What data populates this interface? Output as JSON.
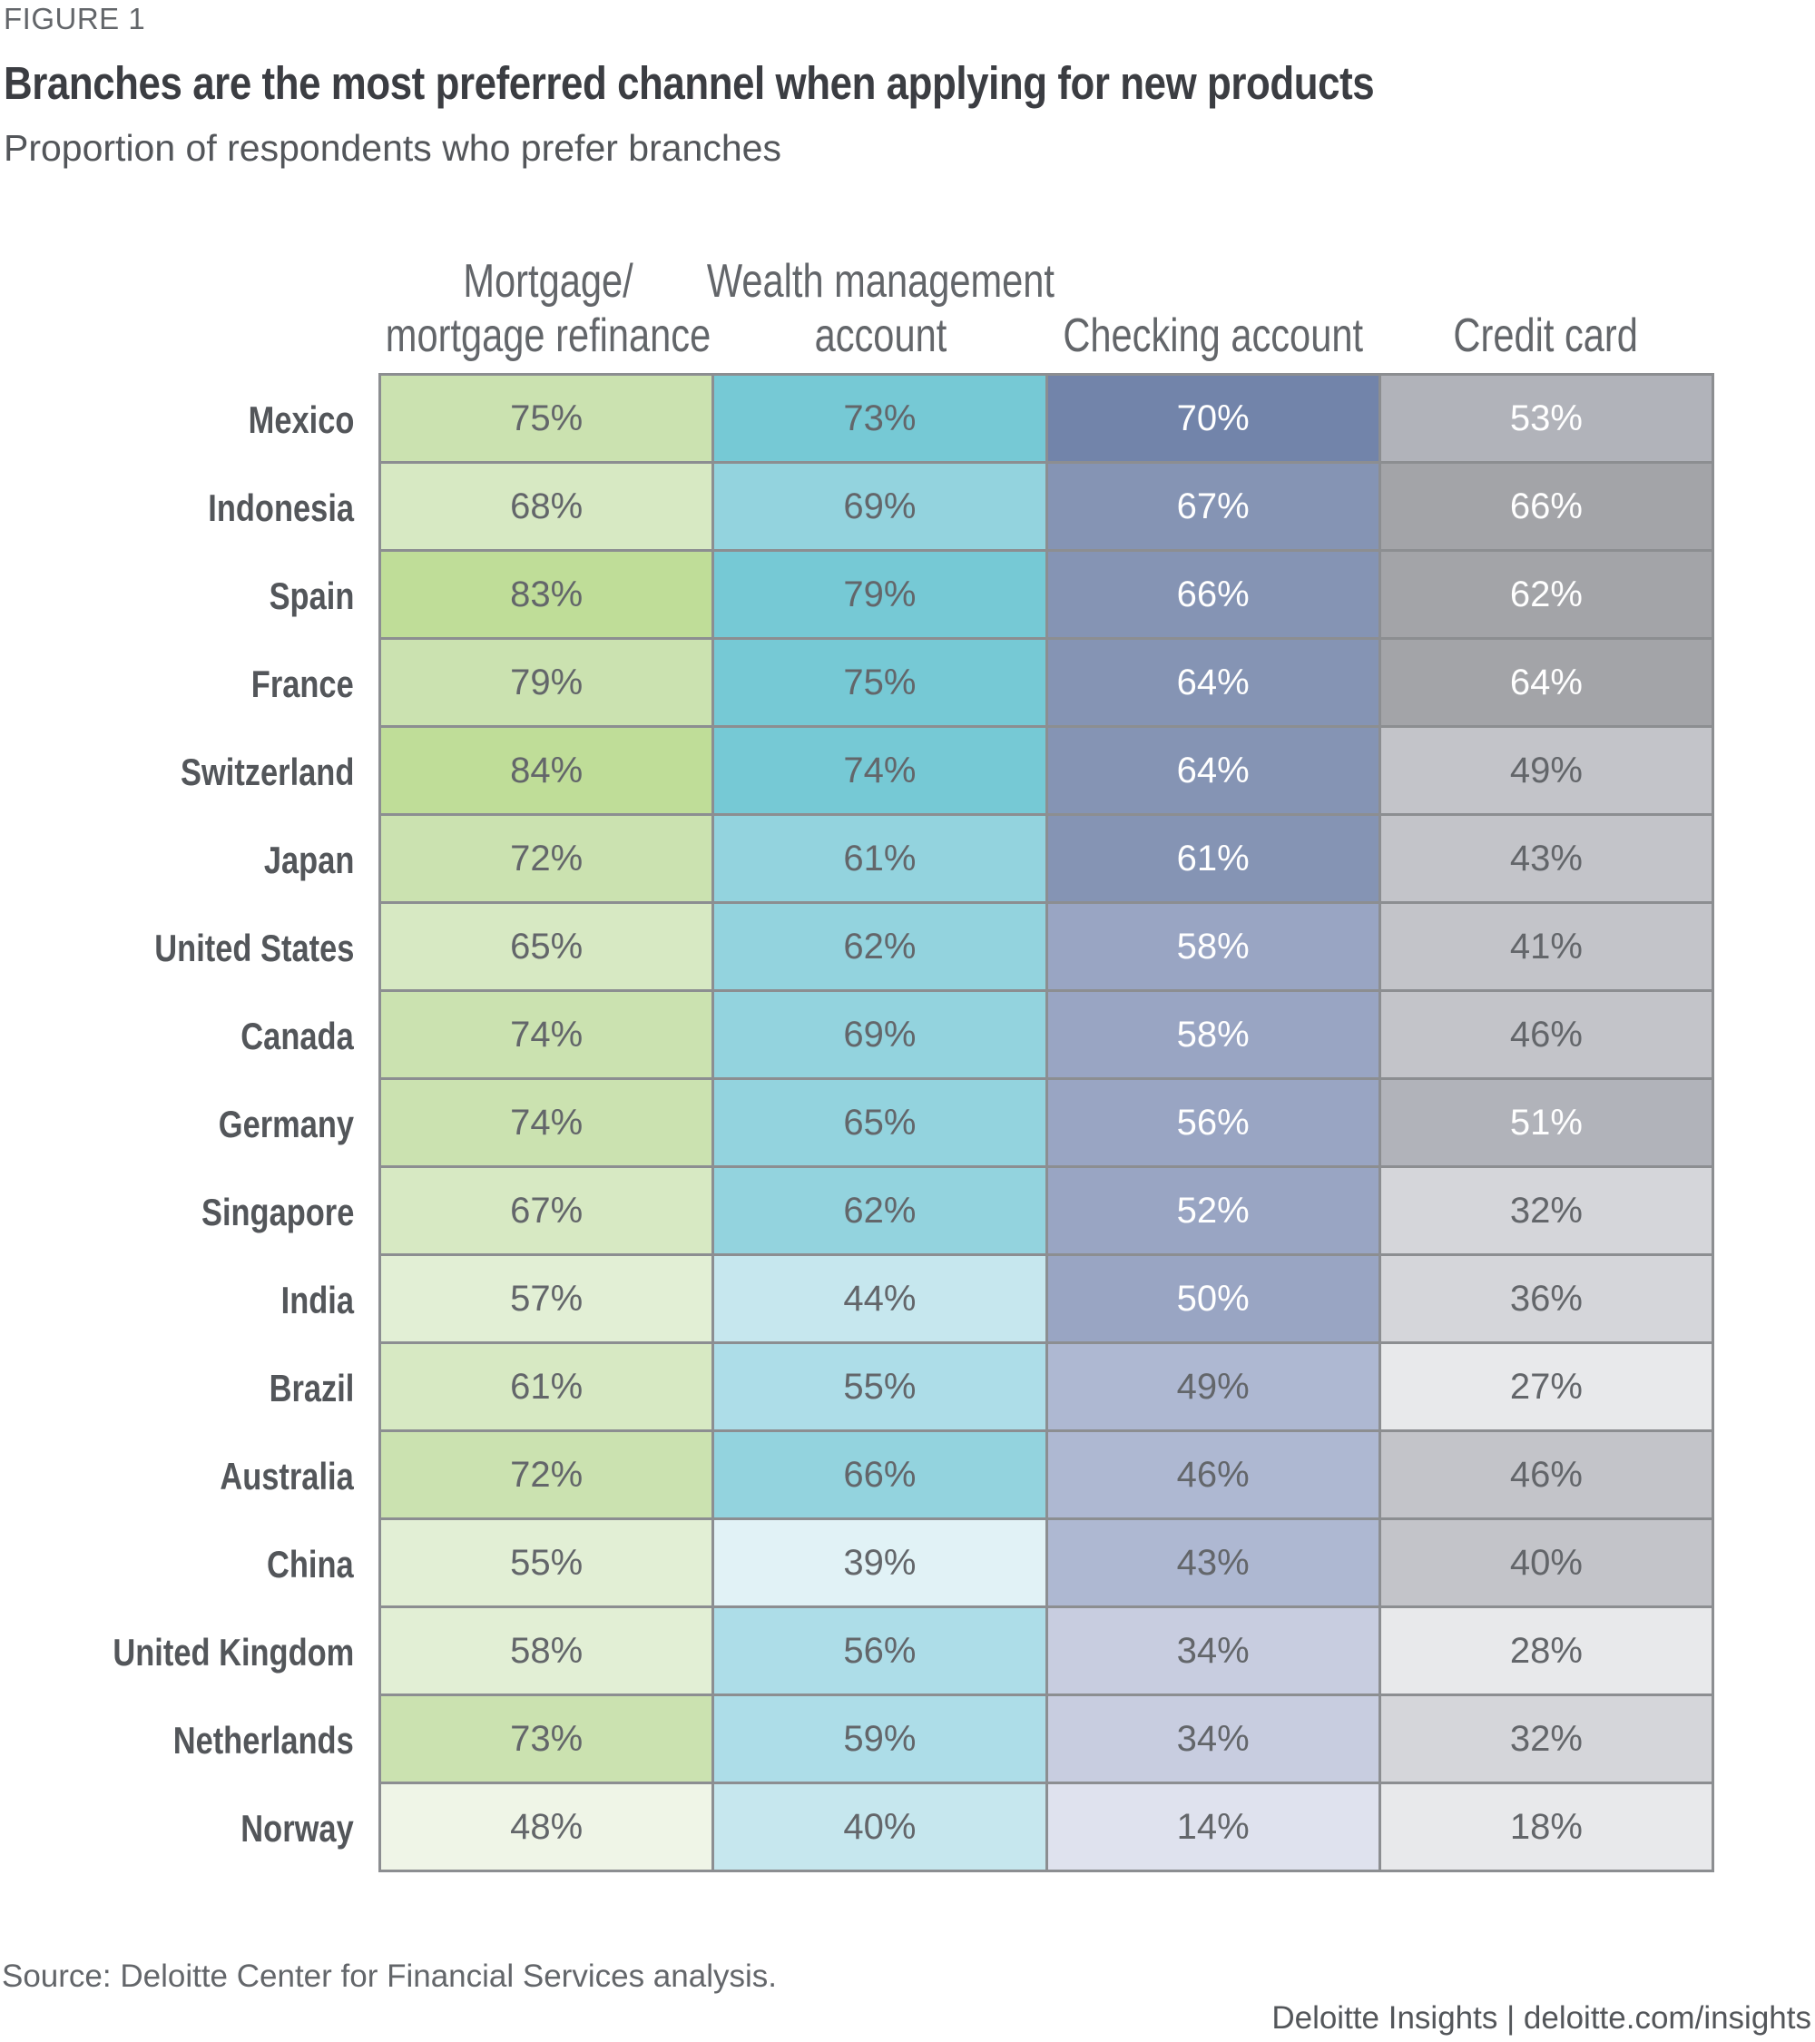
{
  "figure_label": "FIGURE 1",
  "title": "Branches are the most preferred channel when applying for new products",
  "subtitle": "Proportion of respondents who prefer branches",
  "source": "Source: Deloitte Center for Financial Services analysis.",
  "credit": "Deloitte Insights | deloitte.com/insights",
  "palette": {
    "mortgage": [
      "#eff5e7",
      "#e2efd5",
      "#d7e9c3",
      "#cbe2b0",
      "#bfdd98"
    ],
    "wealth": [
      "#e1f2f6",
      "#c6e7ee",
      "#addde8",
      "#93d3de",
      "#76c9d5"
    ],
    "checking": [
      "#dfe2ee",
      "#c8cde0",
      "#aeb8d2",
      "#99a5c3",
      "#8594b4",
      "#7284aa"
    ],
    "credit": [
      "#e8e9eb",
      "#d5d6da",
      "#c3c4c9",
      "#b1b3ba",
      "#a3a4a8"
    ],
    "text_dark": "#63666a",
    "text_light": "#ffffff",
    "border": "#8c8e91"
  },
  "chart_data": {
    "type": "heatmap",
    "title": "Branches are the most preferred channel when applying for new products",
    "subtitle": "Proportion of respondents who prefer branches",
    "unit": "%",
    "columns": [
      {
        "key": "mortgage",
        "label_lines": [
          "Mortgage/",
          "mortgage refinance"
        ]
      },
      {
        "key": "wealth",
        "label_lines": [
          "Wealth management",
          "account"
        ]
      },
      {
        "key": "checking",
        "label_lines": [
          "Checking account"
        ]
      },
      {
        "key": "credit",
        "label_lines": [
          "Credit card"
        ]
      }
    ],
    "rows": [
      "Mexico",
      "Indonesia",
      "Spain",
      "France",
      "Switzerland",
      "Japan",
      "United States",
      "Canada",
      "Germany",
      "Singapore",
      "India",
      "Brazil",
      "Australia",
      "China",
      "United Kingdom",
      "Netherlands",
      "Norway"
    ],
    "series": [
      {
        "name": "Mortgage/mortgage refinance",
        "values": [
          75,
          68,
          83,
          79,
          84,
          72,
          65,
          74,
          74,
          67,
          57,
          61,
          72,
          55,
          58,
          73,
          48
        ]
      },
      {
        "name": "Wealth management account",
        "values": [
          73,
          69,
          79,
          75,
          74,
          61,
          62,
          69,
          65,
          62,
          44,
          55,
          66,
          39,
          56,
          59,
          40
        ]
      },
      {
        "name": "Checking account",
        "values": [
          70,
          67,
          66,
          64,
          64,
          61,
          58,
          58,
          56,
          52,
          50,
          49,
          46,
          43,
          34,
          34,
          14
        ]
      },
      {
        "name": "Credit card",
        "values": [
          53,
          66,
          62,
          64,
          49,
          43,
          41,
          46,
          51,
          32,
          36,
          27,
          46,
          40,
          28,
          32,
          18
        ]
      }
    ],
    "shade_tiers": [
      [
        3,
        2,
        4,
        3,
        4,
        3,
        2,
        3,
        3,
        2,
        1,
        2,
        3,
        1,
        1,
        3,
        0
      ],
      [
        4,
        3,
        4,
        4,
        4,
        3,
        3,
        3,
        3,
        3,
        1,
        2,
        3,
        0,
        2,
        2,
        1
      ],
      [
        5,
        4,
        4,
        4,
        4,
        4,
        3,
        3,
        3,
        3,
        3,
        2,
        2,
        2,
        1,
        1,
        0
      ],
      [
        3,
        4,
        4,
        4,
        2,
        2,
        2,
        2,
        3,
        1,
        1,
        0,
        2,
        2,
        0,
        1,
        0
      ]
    ],
    "light_text_cells": [
      [
        false,
        false,
        false,
        false,
        false,
        false,
        false,
        false,
        false,
        false,
        false,
        false,
        false,
        false,
        false,
        false,
        false
      ],
      [
        false,
        false,
        false,
        false,
        false,
        false,
        false,
        false,
        false,
        false,
        false,
        false,
        false,
        false,
        false,
        false,
        false
      ],
      [
        true,
        true,
        true,
        true,
        true,
        true,
        true,
        true,
        true,
        true,
        true,
        false,
        false,
        false,
        false,
        false,
        false
      ],
      [
        true,
        true,
        true,
        true,
        false,
        false,
        false,
        false,
        true,
        false,
        false,
        false,
        false,
        false,
        false,
        false,
        false
      ]
    ]
  }
}
